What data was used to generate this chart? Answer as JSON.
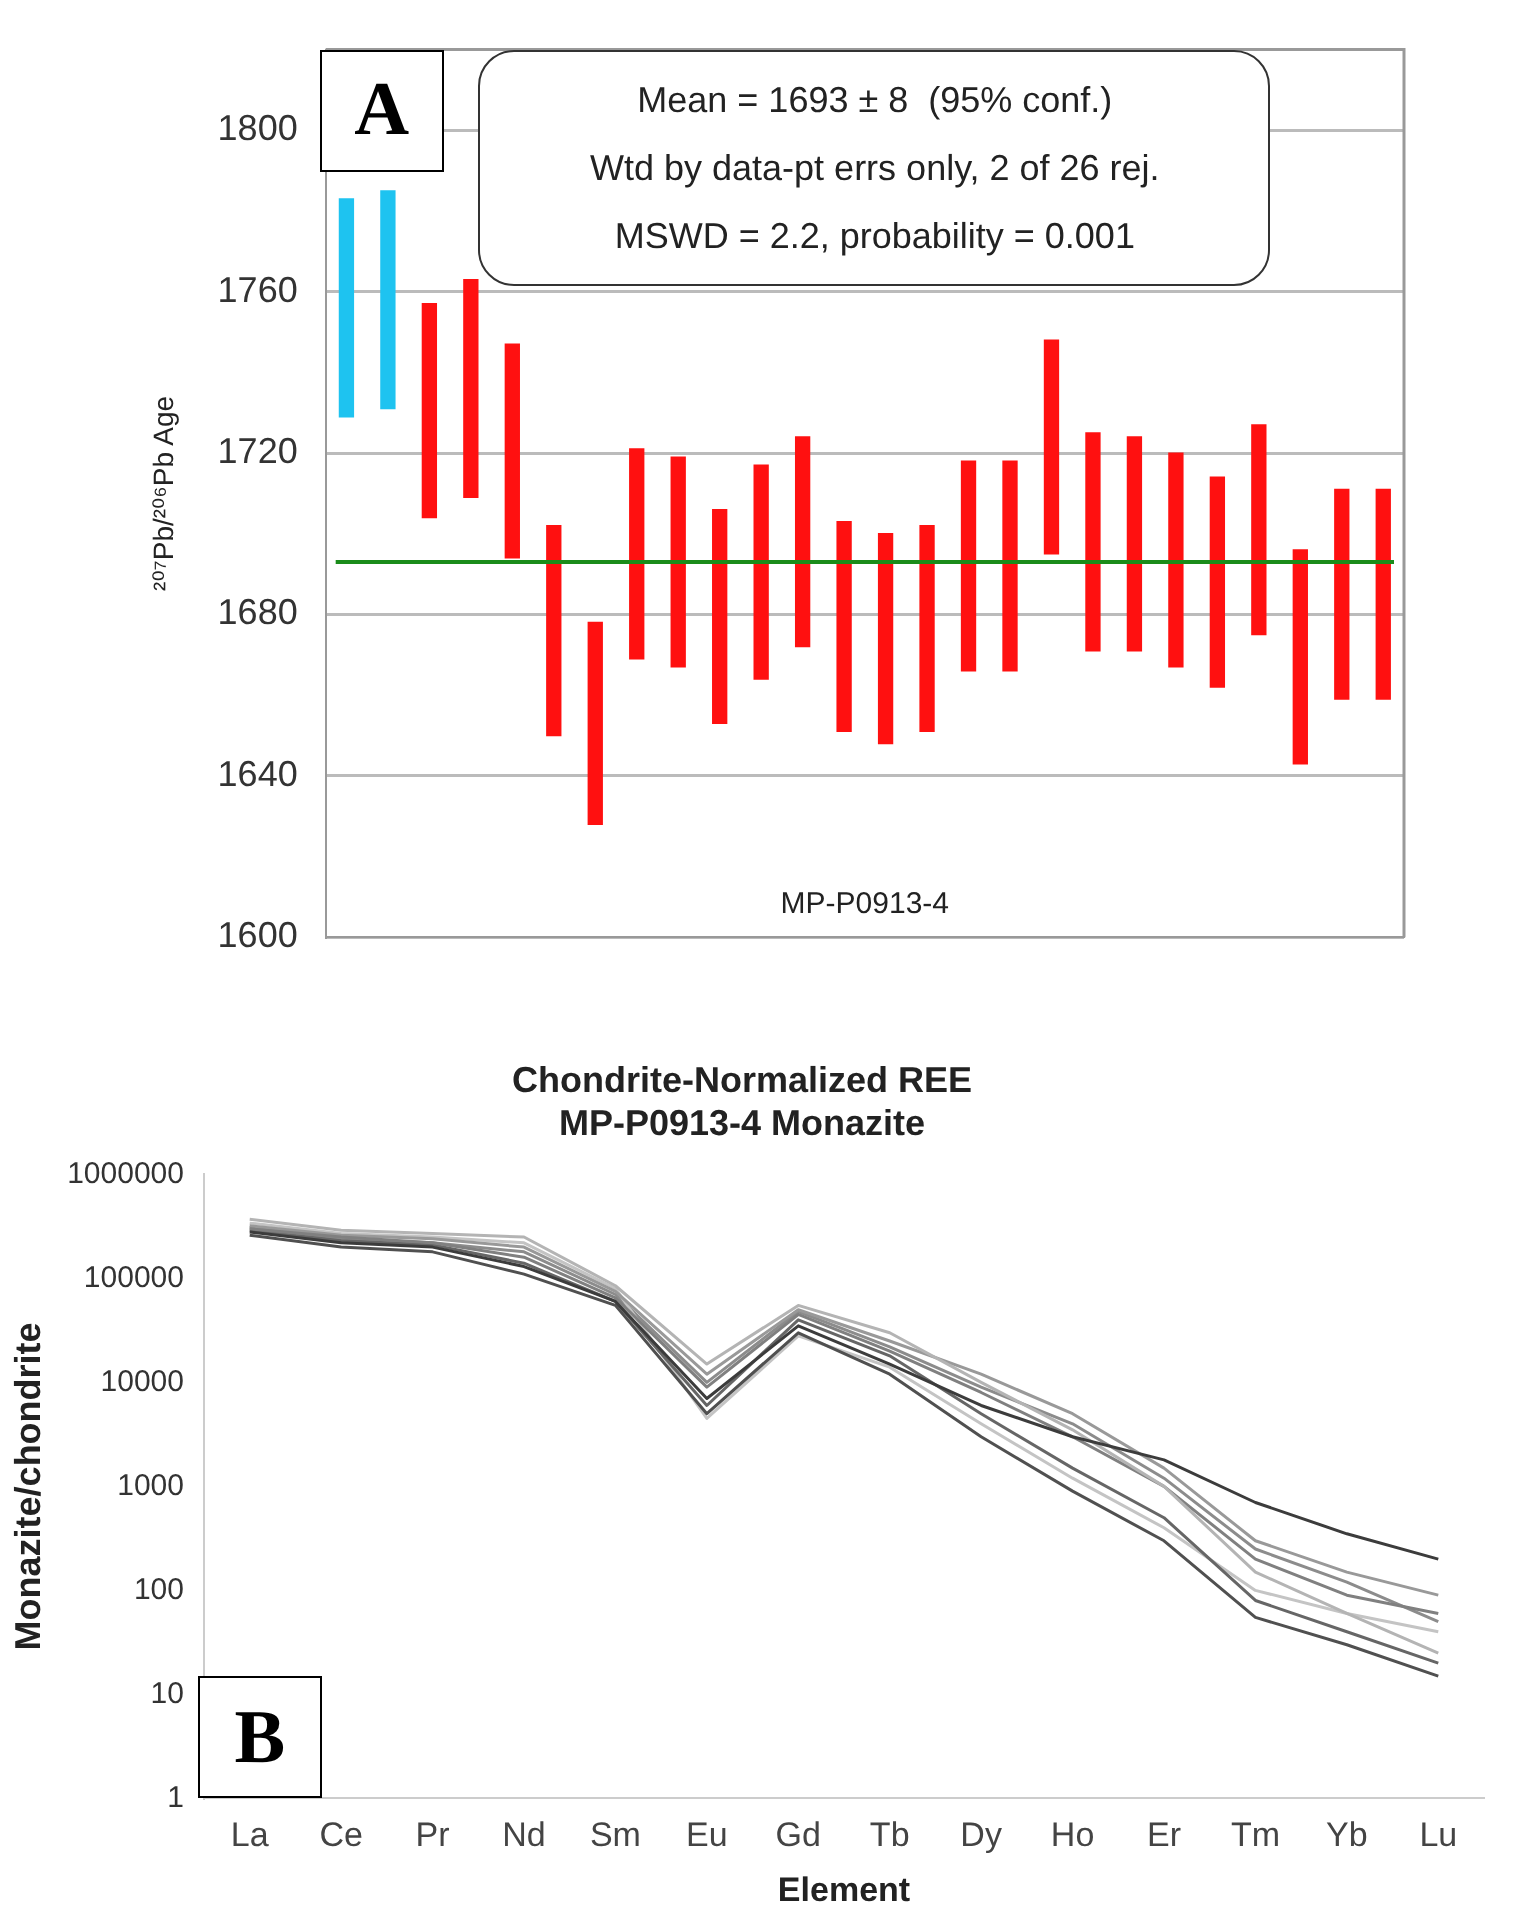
{
  "chart_data": [
    {
      "type": "bar",
      "ylabel": "²⁰⁷Pb/²⁰⁶Pb Age",
      "categories": [
        null,
        null,
        null,
        null,
        null,
        null,
        null,
        null,
        null,
        null,
        null,
        null,
        null,
        null,
        null,
        null,
        null,
        null,
        null,
        null,
        null,
        null,
        null,
        null,
        null,
        null
      ],
      "base": [
        1729,
        1731,
        1704,
        1709,
        1694,
        1650,
        1628,
        1669,
        1667,
        1653,
        1664,
        1672,
        1651,
        1648,
        1651,
        1666,
        1666,
        1695,
        1671,
        1671,
        1667,
        1662,
        1675,
        1643,
        1659,
        1659
      ],
      "values": [
        54,
        54,
        53,
        54,
        53,
        52,
        50,
        52,
        52,
        53,
        53,
        52,
        52,
        52,
        51,
        52,
        52,
        53,
        54,
        53,
        53,
        52,
        52,
        53,
        52,
        52
      ],
      "colors": [
        "#1ec3f0",
        "#1ec3f0",
        "#ff1010",
        "#ff1010",
        "#ff1010",
        "#ff1010",
        "#ff1010",
        "#ff1010",
        "#ff1010",
        "#ff1010",
        "#ff1010",
        "#ff1010",
        "#ff1010",
        "#ff1010",
        "#ff1010",
        "#ff1010",
        "#ff1010",
        "#ff1010",
        "#ff1010",
        "#ff1010",
        "#ff1010",
        "#ff1010",
        "#ff1010",
        "#ff1010",
        "#ff1010",
        "#ff1010"
      ],
      "ylim": [
        1600,
        1820
      ],
      "yticks": [
        1600,
        1640,
        1680,
        1720,
        1760,
        1800
      ],
      "grid": "y",
      "legend": false,
      "ref_lines": [
        {
          "axis": "y",
          "value": 1693,
          "color": "#1a8c1a"
        }
      ],
      "annotations": [
        "A",
        "Mean = 1693 ± 8  (95% conf.)",
        "Wtd by data-pt errs only, 2 of 26 rej.",
        "MSWD = 2.2, probability = 0.001",
        "MP-P0913-4"
      ]
    },
    {
      "type": "line",
      "title": "Chondrite-Normalized REE",
      "subtitle": "MP-P0913-4 Monazite",
      "xlabel": "Element",
      "ylabel": "Monazite/chondrite",
      "log": "y",
      "grid": false,
      "legend": false,
      "marker": "none",
      "categories": [
        "La",
        "Ce",
        "Pr",
        "Nd",
        "Sm",
        "Eu",
        "Gd",
        "Tb",
        "Dy",
        "Ho",
        "Er",
        "Tm",
        "Yb",
        "Lu"
      ],
      "ylim": [
        1,
        1000000
      ],
      "yticks": [
        1,
        10,
        100,
        1000,
        10000,
        100000,
        1000000
      ],
      "series": [
        {
          "color": "#3c3c3c",
          "values": [
            280000,
            220000,
            200000,
            130000,
            60000,
            7000,
            35000,
            15000,
            6000,
            3000,
            1800,
            700,
            350,
            200
          ]
        },
        {
          "color": "#505050",
          "values": [
            260000,
            200000,
            180000,
            110000,
            55000,
            5000,
            30000,
            12000,
            3000,
            900,
            300,
            55,
            30,
            15
          ]
        },
        {
          "color": "#b4b4b4",
          "values": [
            370000,
            290000,
            270000,
            250000,
            85000,
            15000,
            55000,
            30000,
            10000,
            3500,
            1000,
            150,
            60,
            25
          ]
        },
        {
          "color": "#808080",
          "values": [
            300000,
            250000,
            220000,
            160000,
            65000,
            9000,
            45000,
            20000,
            8000,
            3000,
            1000,
            200,
            90,
            60
          ]
        },
        {
          "color": "#999999",
          "values": [
            320000,
            260000,
            240000,
            200000,
            75000,
            12000,
            50000,
            25000,
            12000,
            5000,
            1500,
            300,
            150,
            90
          ]
        },
        {
          "color": "#666666",
          "values": [
            290000,
            230000,
            210000,
            140000,
            60000,
            6000,
            40000,
            18000,
            5000,
            1500,
            500,
            80,
            40,
            20
          ]
        },
        {
          "color": "#c4c4c4",
          "values": [
            340000,
            270000,
            250000,
            220000,
            80000,
            4500,
            28000,
            14000,
            4000,
            1200,
            400,
            100,
            60,
            40
          ]
        },
        {
          "color": "#8c8c8c",
          "values": [
            310000,
            240000,
            220000,
            180000,
            70000,
            10000,
            48000,
            22000,
            9000,
            4000,
            1200,
            250,
            120,
            50
          ]
        }
      ],
      "annotations": [
        "B"
      ]
    }
  ]
}
